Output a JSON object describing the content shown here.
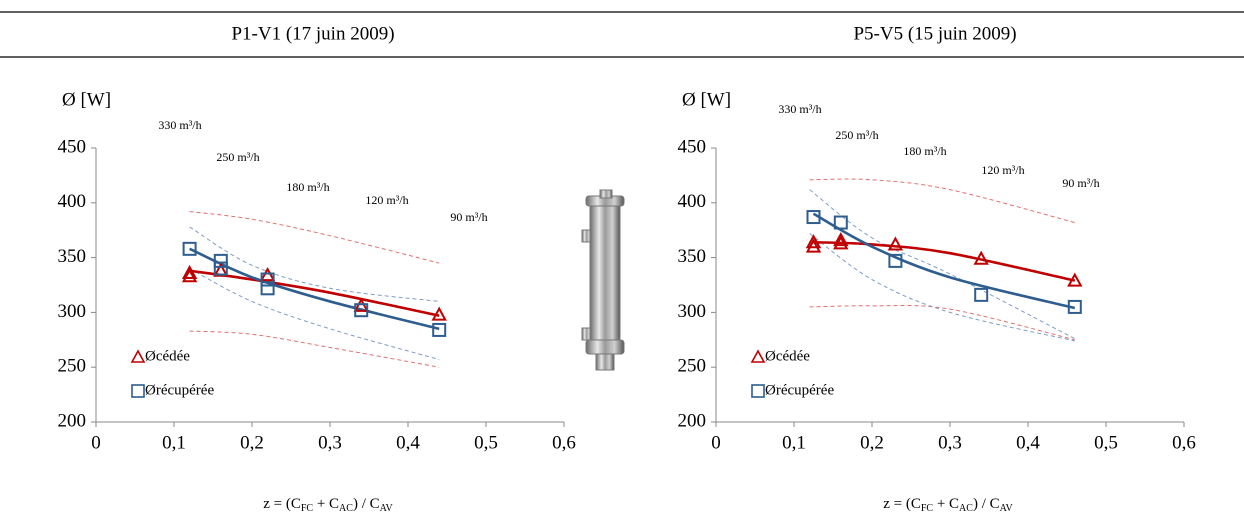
{
  "chart_data": [
    {
      "type": "scatter",
      "title": "P1-V1 (17 juin 2009)",
      "ylabel": "Ø [W]",
      "xlabel_parts": [
        "z = (C",
        "FC",
        " + C",
        "AC",
        ") / C",
        "AV"
      ],
      "xlim": [
        0,
        0.6
      ],
      "ylim": [
        200,
        450
      ],
      "xticks": [
        0,
        {
          "value": 0.1,
          "label": "0,1"
        },
        {
          "value": 0.2,
          "label": "0,2"
        },
        {
          "value": 0.3,
          "label": "0,3"
        },
        {
          "value": 0.4,
          "label": "0,4"
        },
        {
          "value": 0.5,
          "label": "0,5"
        },
        {
          "value": 0.6,
          "label": "0,6"
        }
      ],
      "yticks": [
        200,
        250,
        300,
        350,
        400,
        450
      ],
      "annotations": [
        "330 m³/h",
        "250 m³/h",
        "180 m³/h",
        "120 m³/h",
        "90 m³/h"
      ],
      "series": [
        {
          "name": "Øcédée",
          "color": "#c00000",
          "marker": "triangle",
          "x": [
            0.12,
            0.12,
            0.16,
            0.22,
            0.34,
            0.44
          ],
          "values": [
            336,
            333,
            338,
            334,
            306,
            298
          ],
          "trend": {
            "x": [
              0.12,
              0.2,
              0.3,
              0.44
            ],
            "values": [
              338,
              330,
              318,
              297
            ]
          }
        },
        {
          "name": "Ørécupérée",
          "color": "#2e5d8f",
          "marker": "square",
          "x": [
            0.12,
            0.16,
            0.16,
            0.22,
            0.22,
            0.34,
            0.44
          ],
          "values": [
            358,
            347,
            340,
            330,
            322,
            302,
            284
          ],
          "trend": {
            "x": [
              0.12,
              0.2,
              0.3,
              0.44
            ],
            "values": [
              358,
              332,
              310,
              285
            ]
          }
        }
      ],
      "dashed": [
        {
          "color": "#e07070",
          "x": [
            0.12,
            0.2,
            0.3,
            0.44
          ],
          "values": [
            392,
            385,
            370,
            345
          ]
        },
        {
          "color": "#e07070",
          "x": [
            0.12,
            0.2,
            0.3,
            0.44
          ],
          "values": [
            283,
            280,
            268,
            250
          ]
        },
        {
          "color": "#7f9cc4",
          "x": [
            0.12,
            0.2,
            0.3,
            0.44
          ],
          "values": [
            378,
            343,
            322,
            310
          ]
        },
        {
          "color": "#7f9cc4",
          "x": [
            0.12,
            0.2,
            0.3,
            0.44
          ],
          "values": [
            340,
            310,
            285,
            257
          ]
        }
      ]
    },
    {
      "type": "scatter",
      "title": "P5-V5 (15 juin 2009)",
      "ylabel": "Ø [W]",
      "xlabel_parts": [
        "z = (C",
        "FC",
        " + C",
        "AC",
        ") / C",
        "AV"
      ],
      "xlim": [
        0,
        0.6
      ],
      "ylim": [
        200,
        450
      ],
      "xticks": [
        0,
        {
          "value": 0.1,
          "label": "0,1"
        },
        {
          "value": 0.2,
          "label": "0,2"
        },
        {
          "value": 0.3,
          "label": "0,3"
        },
        {
          "value": 0.4,
          "label": "0,4"
        },
        {
          "value": 0.5,
          "label": "0,5"
        },
        {
          "value": 0.6,
          "label": "0,6"
        }
      ],
      "yticks": [
        200,
        250,
        300,
        350,
        400,
        450
      ],
      "annotations": [
        "330 m³/h",
        "250 m³/h",
        "180 m³/h",
        "120 m³/h",
        "90 m³/h"
      ],
      "series": [
        {
          "name": "Øcédée",
          "color": "#c00000",
          "marker": "triangle",
          "x": [
            0.125,
            0.125,
            0.16,
            0.16,
            0.23,
            0.34,
            0.46
          ],
          "values": [
            360,
            364,
            363,
            366,
            362,
            349,
            329
          ],
          "trend": {
            "x": [
              0.125,
              0.2,
              0.3,
              0.46
            ],
            "values": [
              364,
              362,
              354,
              329
            ]
          }
        },
        {
          "name": "Ørécupérée",
          "color": "#2e5d8f",
          "marker": "square",
          "x": [
            0.125,
            0.16,
            0.23,
            0.34,
            0.46
          ],
          "values": [
            387,
            382,
            347,
            316,
            305
          ],
          "trend": {
            "x": [
              0.125,
              0.2,
              0.3,
              0.46
            ],
            "values": [
              390,
              360,
              332,
              304
            ]
          }
        }
      ],
      "dashed": [
        {
          "color": "#e07070",
          "x": [
            0.12,
            0.2,
            0.3,
            0.46
          ],
          "values": [
            421,
            421,
            412,
            382
          ]
        },
        {
          "color": "#e07070",
          "x": [
            0.12,
            0.2,
            0.3,
            0.46
          ],
          "values": [
            305,
            306,
            303,
            275
          ]
        },
        {
          "color": "#7f9cc4",
          "x": [
            0.12,
            0.2,
            0.3,
            0.46
          ],
          "values": [
            412,
            368,
            335,
            276
          ]
        },
        {
          "color": "#7f9cc4",
          "x": [
            0.12,
            0.2,
            0.3,
            0.46
          ],
          "values": [
            372,
            330,
            300,
            274
          ]
        }
      ]
    }
  ]
}
